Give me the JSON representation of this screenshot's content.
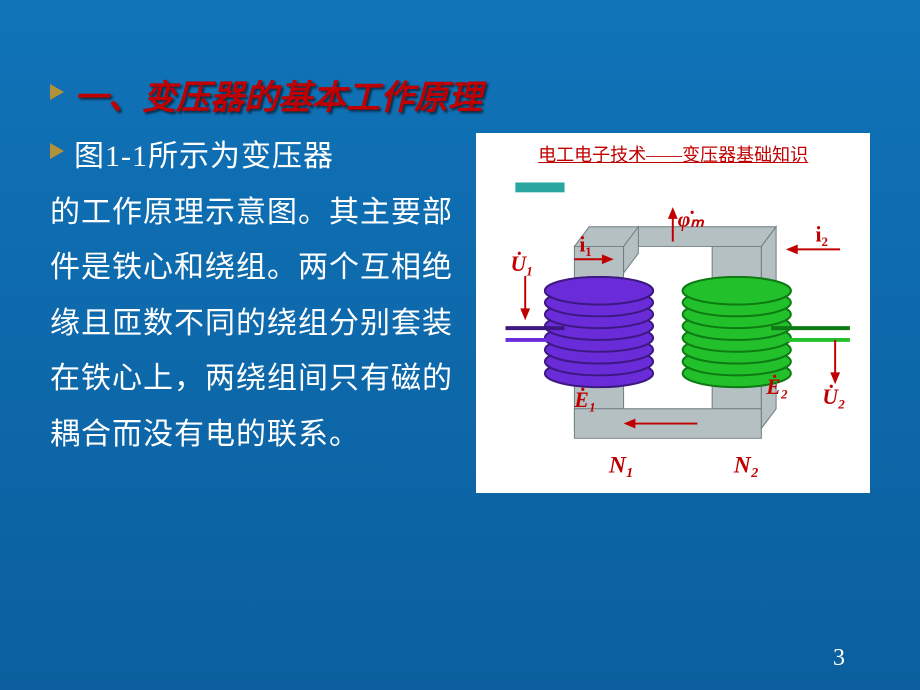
{
  "slide": {
    "background_gradient": {
      "top": "#1073b8",
      "bottom": "#0b5f9e"
    },
    "page_number": "3"
  },
  "heading": {
    "bullet_color": "#b1913a",
    "text": "一、变压器的基本工作原理",
    "text_color": "#c00000"
  },
  "body": {
    "bullet_color": "#b1913a",
    "lead": "图1-1所示为变压器",
    "rest": "的工作原理示意图。其主要部件是铁心和绕组。两个互相绝缘且匝数不同的绕组分别套装在铁心上，两绕组间只有磁的耦合而没有电的联系。",
    "text_color": "#ffffff"
  },
  "figure": {
    "title": "电工电子技术——变压器基础知识",
    "title_color": "#c00000",
    "core_fill": "#b5c0c3",
    "core_stroke": "#6e7b80",
    "coil1_color": "#6a2bd9",
    "coil1_dark": "#3d1880",
    "coil2_color": "#22c02a",
    "coil2_dark": "#0e7a14",
    "arrow_color": "#c00000",
    "label_color": "#c00000",
    "labels": {
      "U1": "U̇₁",
      "i1": "i₁",
      "phi": "φ̇ₘ",
      "i2": "i₂",
      "U2": "U̇₂",
      "E1": "Ė₁",
      "E2": "Ė₂",
      "N1": "N₁",
      "N2": "N₂"
    }
  }
}
